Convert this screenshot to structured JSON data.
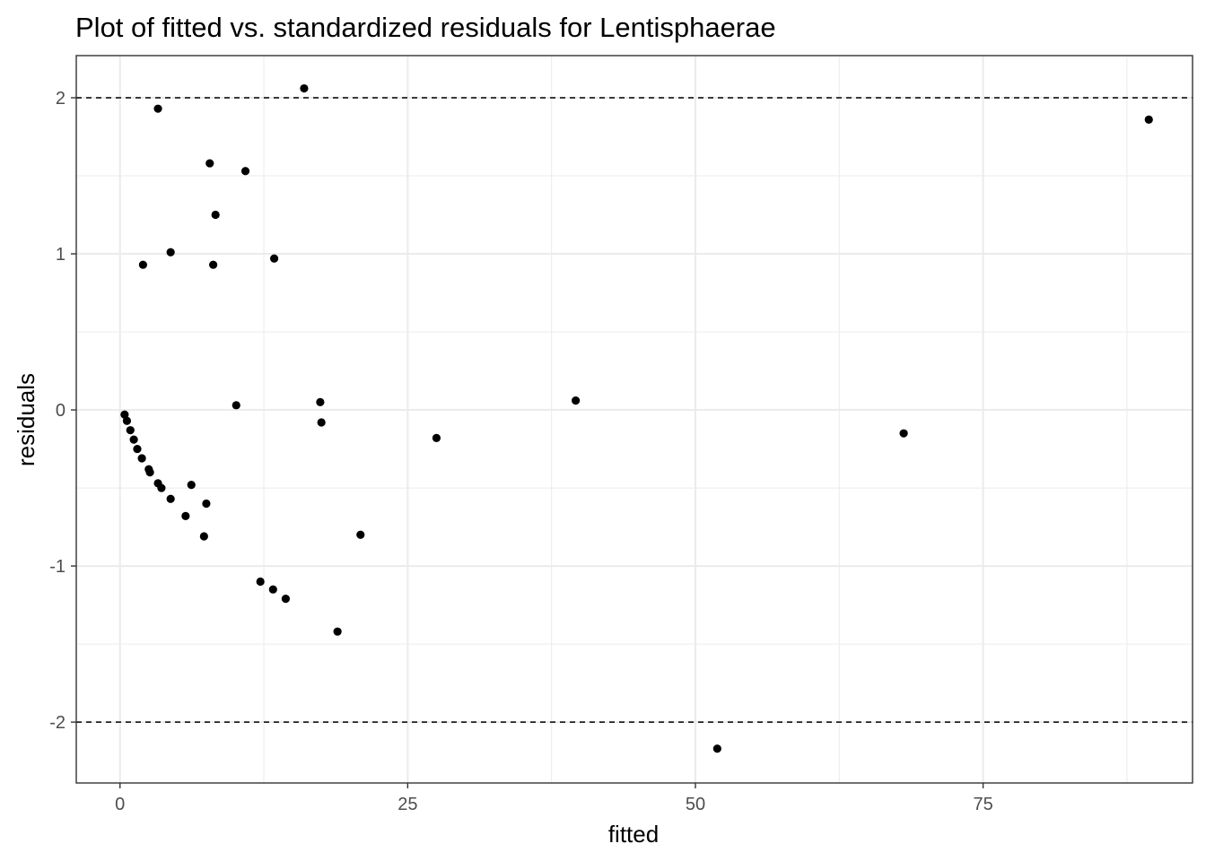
{
  "chart_data": {
    "type": "scatter",
    "title": "Plot of fitted vs. standardized residuals for Lentisphaerae",
    "xlabel": "fitted",
    "ylabel": "residuals",
    "xlim": [
      -3.8,
      93.2
    ],
    "ylim": [
      -2.39,
      2.27
    ],
    "x_ticks": [
      0,
      25,
      50,
      75
    ],
    "x_tick_labels": [
      "0",
      "25",
      "50",
      "75"
    ],
    "y_ticks": [
      -2,
      -1,
      0,
      1,
      2
    ],
    "y_tick_labels": [
      "-2",
      "-1",
      "0",
      "1",
      "2"
    ],
    "reference_lines": [
      {
        "y": 2,
        "style": "dashed"
      },
      {
        "y": -2,
        "style": "dashed"
      }
    ],
    "grid": true,
    "legend": "none",
    "colors": {
      "points": "#000000",
      "grid": "#ebebeb",
      "panel_border": "#333333",
      "reference_line": "#000000"
    },
    "points": [
      {
        "x": 0.4,
        "y": -0.03
      },
      {
        "x": 0.6,
        "y": -0.07
      },
      {
        "x": 0.9,
        "y": -0.13
      },
      {
        "x": 1.2,
        "y": -0.19
      },
      {
        "x": 1.5,
        "y": -0.25
      },
      {
        "x": 1.9,
        "y": -0.31
      },
      {
        "x": 2.5,
        "y": -0.38
      },
      {
        "x": 2.6,
        "y": -0.4
      },
      {
        "x": 3.3,
        "y": -0.47
      },
      {
        "x": 3.6,
        "y": -0.5
      },
      {
        "x": 4.4,
        "y": -0.57
      },
      {
        "x": 5.7,
        "y": -0.68
      },
      {
        "x": 6.2,
        "y": -0.48
      },
      {
        "x": 7.3,
        "y": -0.81
      },
      {
        "x": 7.5,
        "y": -0.6
      },
      {
        "x": 2.0,
        "y": 0.93
      },
      {
        "x": 3.3,
        "y": 1.93
      },
      {
        "x": 4.4,
        "y": 1.01
      },
      {
        "x": 7.8,
        "y": 1.58
      },
      {
        "x": 8.1,
        "y": 0.93
      },
      {
        "x": 8.3,
        "y": 1.25
      },
      {
        "x": 10.1,
        "y": 0.03
      },
      {
        "x": 10.9,
        "y": 1.53
      },
      {
        "x": 12.2,
        "y": -1.1
      },
      {
        "x": 13.3,
        "y": -1.15
      },
      {
        "x": 13.4,
        "y": 0.97
      },
      {
        "x": 14.4,
        "y": -1.21
      },
      {
        "x": 16.0,
        "y": 2.06
      },
      {
        "x": 17.4,
        "y": 0.05
      },
      {
        "x": 17.5,
        "y": -0.08
      },
      {
        "x": 18.9,
        "y": -1.42
      },
      {
        "x": 20.9,
        "y": -0.8
      },
      {
        "x": 27.5,
        "y": -0.18
      },
      {
        "x": 39.6,
        "y": 0.06
      },
      {
        "x": 51.9,
        "y": -2.17
      },
      {
        "x": 68.1,
        "y": -0.15
      },
      {
        "x": 89.4,
        "y": 1.86
      }
    ]
  }
}
